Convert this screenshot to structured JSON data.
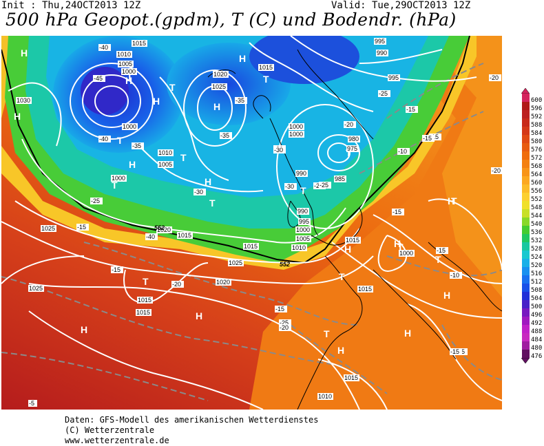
{
  "header": {
    "init": "Init : Thu,24OCT2013 12Z",
    "valid": "Valid: Tue,29OCT2013 12Z",
    "title": "500 hPa Geopot.(gpdm), T (C) und Bodendr. (hPa)"
  },
  "footer": {
    "line1": "Daten: GFS-Modell des amerikanischen Wetterdienstes",
    "line2": "(C) Wetterzentrale",
    "line3": "www.wetterzentrale.de"
  },
  "legend": {
    "entries": [
      {
        "label": "600",
        "color": "#d4245e"
      },
      {
        "label": "596",
        "color": "#b01818"
      },
      {
        "label": "592",
        "color": "#bc2020"
      },
      {
        "label": "588",
        "color": "#c82a1a"
      },
      {
        "label": "584",
        "color": "#d43818"
      },
      {
        "label": "580",
        "color": "#e04a14"
      },
      {
        "label": "576",
        "color": "#e85c10"
      },
      {
        "label": "572",
        "color": "#f06c0c"
      },
      {
        "label": "568",
        "color": "#f48010"
      },
      {
        "label": "564",
        "color": "#f89418"
      },
      {
        "label": "560",
        "color": "#fca820"
      },
      {
        "label": "556",
        "color": "#fcbc28"
      },
      {
        "label": "552",
        "color": "#fcd030"
      },
      {
        "label": "548",
        "color": "#f0e02a"
      },
      {
        "label": "544",
        "color": "#c8e028"
      },
      {
        "label": "540",
        "color": "#88d828"
      },
      {
        "label": "536",
        "color": "#44cc30"
      },
      {
        "label": "532",
        "color": "#20c860"
      },
      {
        "label": "528",
        "color": "#18c8a0"
      },
      {
        "label": "524",
        "color": "#18c8d0"
      },
      {
        "label": "520",
        "color": "#18b0e8"
      },
      {
        "label": "516",
        "color": "#1890f0"
      },
      {
        "label": "512",
        "color": "#1870f0"
      },
      {
        "label": "508",
        "color": "#1850e8"
      },
      {
        "label": "504",
        "color": "#2030d8"
      },
      {
        "label": "500",
        "color": "#4820c8"
      },
      {
        "label": "496",
        "color": "#7818c0"
      },
      {
        "label": "492",
        "color": "#a018c0"
      },
      {
        "label": "488",
        "color": "#c020c8"
      },
      {
        "label": "484",
        "color": "#c828c0"
      },
      {
        "label": "480",
        "color": "#a01ca0"
      },
      {
        "label": "476",
        "color": "#601060"
      }
    ]
  },
  "map": {
    "highs": [
      "H",
      "H",
      "H",
      "H",
      "H",
      "H",
      "H",
      "H",
      "H",
      "H",
      "H",
      "H",
      "H",
      "H",
      "H",
      "H"
    ],
    "lows": [
      "T",
      "T",
      "T",
      "T",
      "T",
      "T",
      "T",
      "T",
      "T",
      "T",
      "T",
      "T",
      "T",
      "T",
      "T"
    ],
    "isobar_labels": [
      "1015",
      "1010",
      "1005",
      "1000",
      "1030",
      "1000",
      "1005",
      "1020",
      "1025",
      "1015",
      "995",
      "990",
      "995",
      "1000",
      "1000",
      "1010",
      "1005",
      "1000",
      "990",
      "980",
      "975",
      "985",
      "990",
      "995",
      "1000",
      "1005",
      "1010",
      "1015",
      "1025",
      "1020",
      "1015",
      "1025",
      "1020",
      "1015",
      "1015",
      "1015",
      "1025",
      "1015",
      "1015",
      "1010",
      "1000"
    ],
    "temp_labels": [
      "-40",
      "-45",
      "-40",
      "-35",
      "-30",
      "-35",
      "-35",
      "-30",
      "-40",
      "-25",
      "-30",
      "-25",
      "-20",
      "-25",
      "-15",
      "-15",
      "-20",
      "-15",
      "-10",
      "-15",
      "-15",
      "-15",
      "-20",
      "-15",
      "-25",
      "-20",
      "-15",
      "-10",
      "-5",
      "-15",
      "-20",
      "-25",
      "-30",
      "-15"
    ],
    "contour_labels": [
      "552",
      "552"
    ]
  },
  "colors": {
    "isobar": "#ffffff",
    "temp_isotherm": "#909090",
    "coast": "#000000",
    "contour552": "#000000"
  }
}
